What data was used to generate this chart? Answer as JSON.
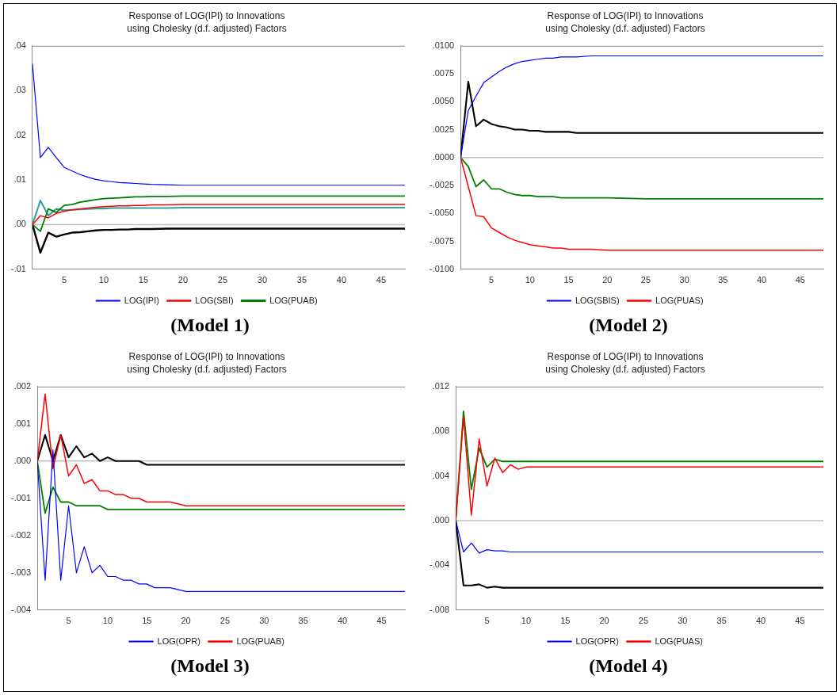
{
  "chart_data": [
    {
      "type": "line",
      "title": "Response of LOG(IPI) to Innovations",
      "subtitle": "using Cholesky (d.f. adjusted) Factors",
      "annotations": [
        "(Model 1)"
      ],
      "marker": "none",
      "line_style": "solid",
      "legend": "bottom",
      "x": [
        1,
        2,
        3,
        4,
        5,
        6,
        7,
        8,
        9,
        10,
        11,
        12,
        13,
        14,
        15,
        16,
        18,
        20,
        25,
        30,
        40,
        48
      ],
      "xlim": [
        1,
        48
      ],
      "xticks": [
        5,
        10,
        15,
        20,
        25,
        30,
        35,
        40,
        45
      ],
      "ylim": [
        -0.01,
        0.04
      ],
      "yticks": [
        {
          "value": -0.01,
          "label": "-.01"
        },
        {
          "value": 0,
          "label": ".00"
        },
        {
          "value": 0.01,
          "label": ".01"
        },
        {
          "value": 0.02,
          "label": ".02"
        },
        {
          "value": 0.03,
          "label": ".03"
        },
        {
          "value": 0.04,
          "label": ".04"
        }
      ],
      "ref_lines": [
        {
          "axis": "y",
          "value": 0,
          "color": "#c0c0c0"
        }
      ],
      "series": [
        {
          "name": "LOG(IPI)",
          "color": "#0000ff",
          "values": [
            0.036,
            0.015,
            0.0173,
            0.015,
            0.0128,
            0.012,
            0.0112,
            0.0106,
            0.0101,
            0.0098,
            0.0096,
            0.0094,
            0.0093,
            0.0092,
            0.0091,
            0.009,
            0.0089,
            0.0088,
            0.0088,
            0.0088,
            0.0088,
            0.0088
          ]
        },
        {
          "name": "LOG(SBI)",
          "color": "#ff0000",
          "values": [
            0,
            0.002,
            0.0015,
            0.0025,
            0.003,
            0.0033,
            0.0035,
            0.0037,
            0.0039,
            0.004,
            0.0041,
            0.0042,
            0.0042,
            0.0043,
            0.0043,
            0.0044,
            0.0044,
            0.0045,
            0.0045,
            0.0045,
            0.0045,
            0.0045
          ]
        },
        {
          "name": "LOG(PUAB)",
          "color": "#008000",
          "values": [
            0,
            -0.0015,
            0.0035,
            0.0027,
            0.0043,
            0.0045,
            0.005,
            0.0053,
            0.0056,
            0.0058,
            0.0059,
            0.006,
            0.0061,
            0.0062,
            0.0062,
            0.0063,
            0.0063,
            0.0064,
            0.0064,
            0.0064,
            0.0064,
            0.0064
          ]
        },
        {
          "color": "#30a0a0",
          "values": [
            0,
            0.0054,
            0.002,
            0.0035,
            0.0032,
            0.0033,
            0.0034,
            0.0035,
            0.0036,
            0.0036,
            0.0037,
            0.0037,
            0.0037,
            0.0037,
            0.0037,
            0.0037,
            0.0037,
            0.0038,
            0.0038,
            0.0038,
            0.0038,
            0.0038
          ]
        },
        {
          "color": "#000000",
          "values": [
            0,
            -0.0063,
            -0.0018,
            -0.0027,
            -0.0022,
            -0.0018,
            -0.0017,
            -0.0015,
            -0.0013,
            -0.0012,
            -0.0012,
            -0.0011,
            -0.0011,
            -0.001,
            -0.001,
            -0.001,
            -0.0009,
            -0.0009,
            -0.0009,
            -0.0009,
            -0.0009,
            -0.0009
          ]
        }
      ]
    },
    {
      "type": "line",
      "title": "Response of LOG(IPI) to Innovations",
      "subtitle": "using Cholesky (d.f. adjusted) Factors",
      "annotations": [
        "(Model 2)"
      ],
      "marker": "none",
      "line_style": "solid",
      "legend": "bottom",
      "x": [
        1,
        2,
        3,
        4,
        5,
        6,
        7,
        8,
        9,
        10,
        11,
        12,
        13,
        14,
        15,
        16,
        18,
        20,
        25,
        30,
        40,
        48
      ],
      "xlim": [
        1,
        48
      ],
      "xticks": [
        5,
        10,
        15,
        20,
        25,
        30,
        35,
        40,
        45
      ],
      "ylim": [
        -0.01,
        0.01
      ],
      "yticks": [
        {
          "value": -0.01,
          "label": "-.0100"
        },
        {
          "value": -0.0075,
          "label": "-.0075"
        },
        {
          "value": -0.005,
          "label": "-.0050"
        },
        {
          "value": -0.0025,
          "label": "-.0025"
        },
        {
          "value": 0,
          "label": ".0000"
        },
        {
          "value": 0.0025,
          "label": ".0025"
        },
        {
          "value": 0.005,
          "label": ".0050"
        },
        {
          "value": 0.0075,
          "label": ".0075"
        },
        {
          "value": 0.01,
          "label": ".0100"
        }
      ],
      "ref_lines": [
        {
          "axis": "y",
          "value": 0,
          "color": "#c0c0c0"
        }
      ],
      "series": [
        {
          "name": "LOG(SBIS)",
          "color": "#0000ff",
          "values": [
            0,
            0.0042,
            0.0055,
            0.0067,
            0.0072,
            0.0077,
            0.0081,
            0.0084,
            0.0086,
            0.0087,
            0.0088,
            0.0089,
            0.0089,
            0.009,
            0.009,
            0.009,
            0.0091,
            0.0091,
            0.0091,
            0.0091,
            0.0091,
            0.0091
          ]
        },
        {
          "name": "LOG(PUAS)",
          "color": "#ff0000",
          "values": [
            0,
            -0.0026,
            -0.0052,
            -0.0053,
            -0.0063,
            -0.0067,
            -0.0071,
            -0.0074,
            -0.0076,
            -0.0078,
            -0.0079,
            -0.008,
            -0.0081,
            -0.0081,
            -0.0082,
            -0.0082,
            -0.0082,
            -0.0083,
            -0.0083,
            -0.0083,
            -0.0083,
            -0.0083
          ]
        },
        {
          "color": "#008000",
          "values": [
            0,
            -0.0008,
            -0.0026,
            -0.002,
            -0.0028,
            -0.0028,
            -0.0031,
            -0.0033,
            -0.0034,
            -0.0034,
            -0.0035,
            -0.0035,
            -0.0035,
            -0.0036,
            -0.0036,
            -0.0036,
            -0.0036,
            -0.0036,
            -0.0037,
            -0.0037,
            -0.0037,
            -0.0037
          ]
        },
        {
          "color": "#000000",
          "values": [
            0,
            0.0068,
            0.0028,
            0.0034,
            0.003,
            0.0028,
            0.0027,
            0.0025,
            0.0025,
            0.0024,
            0.0024,
            0.0023,
            0.0023,
            0.0023,
            0.0023,
            0.0022,
            0.0022,
            0.0022,
            0.0022,
            0.0022,
            0.0022,
            0.0022
          ]
        }
      ]
    },
    {
      "type": "line",
      "title": "Response of LOG(IPI) to Innovations",
      "subtitle": "using Cholesky (d.f. adjusted) Factors",
      "annotations": [
        "(Model 3)"
      ],
      "marker": "none",
      "line_style": "solid",
      "legend": "bottom",
      "x": [
        1,
        2,
        3,
        4,
        5,
        6,
        7,
        8,
        9,
        10,
        11,
        12,
        13,
        14,
        15,
        16,
        18,
        20,
        25,
        30,
        40,
        48
      ],
      "xlim": [
        1,
        48
      ],
      "xticks": [
        5,
        10,
        15,
        20,
        25,
        30,
        35,
        40,
        45
      ],
      "ylim": [
        -0.004,
        0.002
      ],
      "yticks": [
        {
          "value": -0.004,
          "label": "-.004"
        },
        {
          "value": -0.003,
          "label": "-.003"
        },
        {
          "value": -0.002,
          "label": "-.002"
        },
        {
          "value": -0.001,
          "label": "-.001"
        },
        {
          "value": 0,
          "label": ".000"
        },
        {
          "value": 0.001,
          "label": ".001"
        },
        {
          "value": 0.002,
          "label": ".002"
        }
      ],
      "ref_lines": [
        {
          "axis": "y",
          "value": 0,
          "color": "#c0c0c0"
        }
      ],
      "series": [
        {
          "name": "LOG(OPR)",
          "color": "#0000ff",
          "values": [
            0,
            -0.0032,
            0.0003,
            -0.0032,
            -0.0012,
            -0.003,
            -0.0023,
            -0.003,
            -0.0028,
            -0.0031,
            -0.0031,
            -0.0032,
            -0.0032,
            -0.0033,
            -0.0033,
            -0.0034,
            -0.0034,
            -0.0035,
            -0.0035,
            -0.0035,
            -0.0035,
            -0.0035
          ]
        },
        {
          "name": "LOG(PUAB)",
          "color": "#ff0000",
          "values": [
            0,
            0.0018,
            -0.0002,
            0.0007,
            -0.0004,
            -0.0001,
            -0.0006,
            -0.0005,
            -0.0008,
            -0.0008,
            -0.0009,
            -0.0009,
            -0.001,
            -0.001,
            -0.0011,
            -0.0011,
            -0.0011,
            -0.0012,
            -0.0012,
            -0.0012,
            -0.0012,
            -0.0012
          ]
        },
        {
          "color": "#008000",
          "values": [
            0,
            -0.0014,
            -0.0007,
            -0.0011,
            -0.0011,
            -0.0012,
            -0.0012,
            -0.0012,
            -0.0012,
            -0.0013,
            -0.0013,
            -0.0013,
            -0.0013,
            -0.0013,
            -0.0013,
            -0.0013,
            -0.0013,
            -0.0013,
            -0.0013,
            -0.0013,
            -0.0013,
            -0.0013
          ]
        },
        {
          "color": "#000000",
          "values": [
            0,
            0.0007,
            0,
            0.0007,
            0.0001,
            0.0004,
            0.0001,
            0.0002,
            0,
            0.0001,
            0,
            0,
            0,
            0,
            -0.0001,
            -0.0001,
            -0.0001,
            -0.0001,
            -0.0001,
            -0.0001,
            -0.0001,
            -0.0001
          ]
        }
      ]
    },
    {
      "type": "line",
      "title": "Response of LOG(IPI) to Innovations",
      "subtitle": "using Cholesky (d.f. adjusted) Factors",
      "annotations": [
        "(Model 4)"
      ],
      "marker": "none",
      "line_style": "solid",
      "legend": "bottom",
      "x": [
        1,
        2,
        3,
        4,
        5,
        6,
        7,
        8,
        9,
        10,
        11,
        12,
        13,
        14,
        15,
        16,
        18,
        20,
        25,
        30,
        40,
        48
      ],
      "xlim": [
        1,
        48
      ],
      "xticks": [
        5,
        10,
        15,
        20,
        25,
        30,
        35,
        40,
        45
      ],
      "ylim": [
        -0.008,
        0.012
      ],
      "yticks": [
        {
          "value": -0.008,
          "label": "-.008"
        },
        {
          "value": -0.004,
          "label": "-.004"
        },
        {
          "value": 0,
          "label": ".000"
        },
        {
          "value": 0.004,
          "label": ".004"
        },
        {
          "value": 0.008,
          "label": ".008"
        },
        {
          "value": 0.012,
          "label": ".012"
        }
      ],
      "ref_lines": [
        {
          "axis": "y",
          "value": 0,
          "color": "#c0c0c0"
        }
      ],
      "series": [
        {
          "name": "LOG(OPR)",
          "color": "#0000ff",
          "values": [
            0,
            -0.0028,
            -0.002,
            -0.0029,
            -0.0026,
            -0.0027,
            -0.0027,
            -0.0028,
            -0.0028,
            -0.0028,
            -0.0028,
            -0.0028,
            -0.0028,
            -0.0028,
            -0.0028,
            -0.0028,
            -0.0028,
            -0.0028,
            -0.0028,
            -0.0028,
            -0.0028,
            -0.0028
          ]
        },
        {
          "name": "LOG(PUAS)",
          "color": "#ff0000",
          "values": [
            0,
            0.0093,
            0.0005,
            0.0073,
            0.0031,
            0.0056,
            0.0043,
            0.005,
            0.0046,
            0.0048,
            0.0048,
            0.0048,
            0.0048,
            0.0048,
            0.0048,
            0.0048,
            0.0048,
            0.0048,
            0.0048,
            0.0048,
            0.0048,
            0.0048
          ]
        },
        {
          "color": "#008000",
          "values": [
            0,
            0.0098,
            0.0028,
            0.0065,
            0.0048,
            0.0055,
            0.0053,
            0.0053,
            0.0053,
            0.0053,
            0.0053,
            0.0053,
            0.0053,
            0.0053,
            0.0053,
            0.0053,
            0.0053,
            0.0053,
            0.0053,
            0.0053,
            0.0053,
            0.0053
          ]
        },
        {
          "color": "#000000",
          "values": [
            0,
            -0.0058,
            -0.0058,
            -0.0057,
            -0.006,
            -0.0059,
            -0.006,
            -0.006,
            -0.006,
            -0.006,
            -0.006,
            -0.006,
            -0.006,
            -0.006,
            -0.006,
            -0.006,
            -0.006,
            -0.006,
            -0.006,
            -0.006,
            -0.006,
            -0.006
          ]
        }
      ]
    }
  ]
}
